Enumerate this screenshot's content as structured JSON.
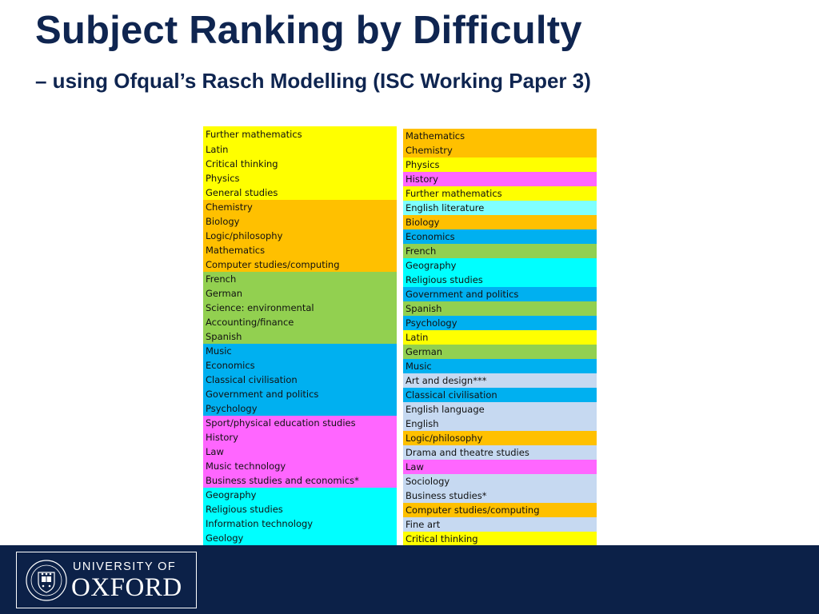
{
  "title": "Subject Ranking by Difficulty",
  "subtitle": "– using Ofqual’s Rasch Modelling (ISC Working Paper 3)",
  "colors": {
    "yellow": "#ffff00",
    "orange": "#ffc000",
    "green": "#92d050",
    "blue": "#00b0f0",
    "magenta": "#ff66ff",
    "cyan": "#00ffff",
    "lightcyan": "#7fffff",
    "paleblue": "#c6d9f1",
    "navy": "#0c2148"
  },
  "left_list": [
    {
      "label": "Further mathematics",
      "color": "#ffff00"
    },
    {
      "label": "Latin",
      "color": "#ffff00"
    },
    {
      "label": "Critical thinking",
      "color": "#ffff00"
    },
    {
      "label": "Physics",
      "color": "#ffff00"
    },
    {
      "label": "General studies",
      "color": "#ffff00"
    },
    {
      "label": "Chemistry",
      "color": "#ffc000"
    },
    {
      "label": "Biology",
      "color": "#ffc000"
    },
    {
      "label": "Logic/philosophy",
      "color": "#ffc000"
    },
    {
      "label": "Mathematics",
      "color": "#ffc000"
    },
    {
      "label": "Computer studies/computing",
      "color": "#ffc000"
    },
    {
      "label": "French",
      "color": "#92d050"
    },
    {
      "label": "German",
      "color": "#92d050"
    },
    {
      "label": "Science: environmental",
      "color": "#92d050"
    },
    {
      "label": "Accounting/finance",
      "color": "#92d050"
    },
    {
      "label": "Spanish",
      "color": "#92d050"
    },
    {
      "label": "Music",
      "color": "#00b0f0"
    },
    {
      "label": "Economics",
      "color": "#00b0f0"
    },
    {
      "label": "Classical civilisation",
      "color": "#00b0f0"
    },
    {
      "label": "Government and politics",
      "color": "#00b0f0"
    },
    {
      "label": "Psychology",
      "color": "#00b0f0"
    },
    {
      "label": "Sport/physical education studies",
      "color": "#ff66ff"
    },
    {
      "label": "History",
      "color": "#ff66ff"
    },
    {
      "label": "Law",
      "color": "#ff66ff"
    },
    {
      "label": "Music technology",
      "color": "#ff66ff"
    },
    {
      "label": "Business studies and economics*",
      "color": "#ff66ff"
    },
    {
      "label": "Geography",
      "color": "#00ffff"
    },
    {
      "label": "Religious studies",
      "color": "#00ffff"
    },
    {
      "label": "Information technology",
      "color": "#00ffff"
    },
    {
      "label": "Geology",
      "color": "#00ffff"
    }
  ],
  "right_list": [
    {
      "label": "Mathematics",
      "color": "#ffc000"
    },
    {
      "label": "Chemistry",
      "color": "#ffc000"
    },
    {
      "label": "Physics",
      "color": "#ffff00"
    },
    {
      "label": "History",
      "color": "#ff66ff"
    },
    {
      "label": "Further mathematics",
      "color": "#ffff00"
    },
    {
      "label": "English literature",
      "color": "#7fffff"
    },
    {
      "label": "Biology",
      "color": "#ffc000"
    },
    {
      "label": "Economics",
      "color": "#00b0f0"
    },
    {
      "label": "French",
      "color": "#92d050"
    },
    {
      "label": "Geography",
      "color": "#00ffff"
    },
    {
      "label": "Religious studies",
      "color": "#00ffff"
    },
    {
      "label": "Government and politics",
      "color": "#00b0f0"
    },
    {
      "label": "Spanish",
      "color": "#92d050"
    },
    {
      "label": "Psychology",
      "color": "#00b0f0"
    },
    {
      "label": "Latin",
      "color": "#ffff00"
    },
    {
      "label": "German",
      "color": "#92d050"
    },
    {
      "label": "Music",
      "color": "#00b0f0"
    },
    {
      "label": "Art and design***",
      "color": "#c6d9f1"
    },
    {
      "label": "Classical civilisation",
      "color": "#00b0f0"
    },
    {
      "label": "English language",
      "color": "#c6d9f1"
    },
    {
      "label": "English",
      "color": "#c6d9f1"
    },
    {
      "label": "Logic/philosophy",
      "color": "#ffc000"
    },
    {
      "label": "Drama and theatre studies",
      "color": "#c6d9f1"
    },
    {
      "label": "Law",
      "color": "#ff66ff"
    },
    {
      "label": "Sociology",
      "color": "#c6d9f1"
    },
    {
      "label": "Business studies*",
      "color": "#c6d9f1"
    },
    {
      "label": "Computer studies/computing",
      "color": "#ffc000"
    },
    {
      "label": "Fine art",
      "color": "#c6d9f1"
    },
    {
      "label": "Critical thinking",
      "color": "#ffff00"
    }
  ],
  "footer": {
    "logo_line1": "UNIVERSITY OF",
    "logo_line2": "OXFORD",
    "crest_icon": "oxford-crest-icon"
  }
}
